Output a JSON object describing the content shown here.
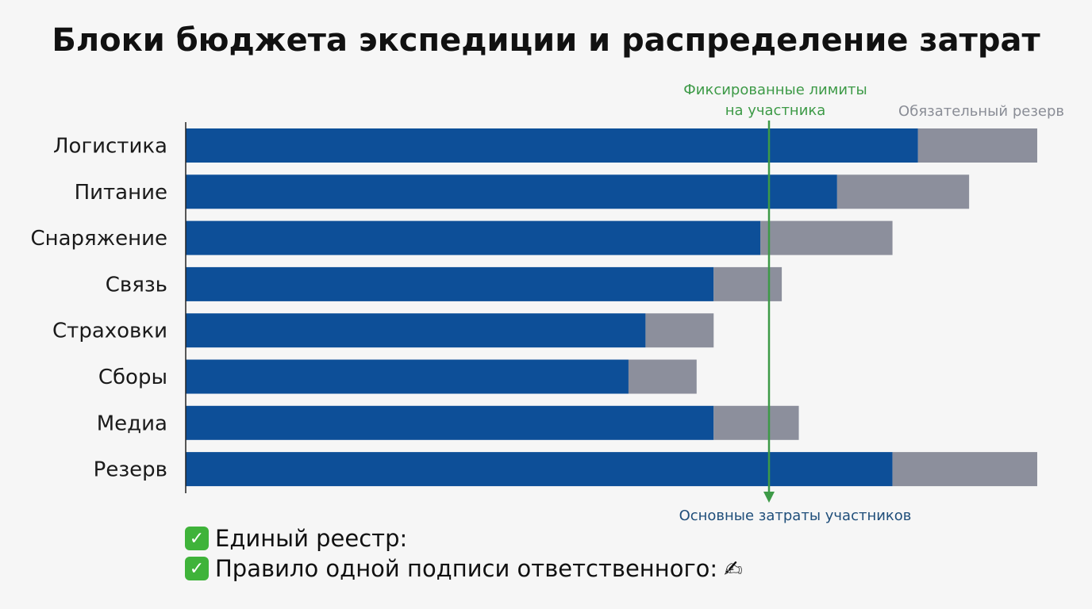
{
  "title": "Блоки бюджета экспедиции и распределение затрат",
  "chart_data": {
    "type": "bar",
    "orientation": "horizontal",
    "stacked": true,
    "categories": [
      "Логистика",
      "Питание",
      "Снаряжение",
      "Связь",
      "Страховки",
      "Сборы",
      "Медиа",
      "Резерв"
    ],
    "series": [
      {
        "name": "Основные затраты участников",
        "color": "#0d4f98",
        "values": [
          86,
          76.5,
          67.5,
          62,
          54,
          52,
          62,
          83
        ]
      },
      {
        "name": "Обязательный резерв",
        "color": "#8c8f9c",
        "values": [
          14,
          15.5,
          15.5,
          8,
          8,
          8,
          10,
          17
        ]
      }
    ],
    "xlim": [
      0,
      100
    ],
    "reference_line": {
      "value": 68.5,
      "label_lines": [
        "Фиксированные лимиты",
        "на участника"
      ],
      "color": "#3d9a47"
    },
    "grid": false
  },
  "notes": [
    {
      "icon": "check-mark",
      "text": "Единый реестр:"
    },
    {
      "icon": "check-mark",
      "text": "Правило одной подписи ответственного:",
      "trailing_icon": "writing-hand"
    }
  ],
  "colors": {
    "primary": "#0d4f98",
    "reserve": "#8c8f9c",
    "limit": "#3d9a47",
    "primary_label": "#1f4e7a",
    "reserve_label": "#8a8d96"
  }
}
